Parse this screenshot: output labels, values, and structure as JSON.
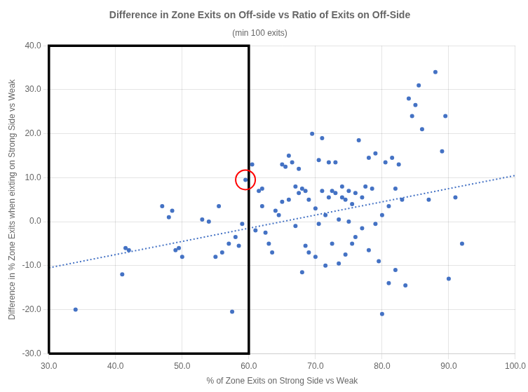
{
  "chart_data": {
    "type": "scatter",
    "title": "Difference in Zone Exits on Off-side vs Ratio of Exits on Off-Side",
    "subtitle": "(min 100 exits)",
    "xlabel": "% of Zone Exits on Strong Side vs Weak",
    "ylabel": "Difference in % Zone Exits when eixting on Strong Side vs Weak",
    "xlim": [
      30.0,
      100.0
    ],
    "ylim": [
      -30.0,
      40.0
    ],
    "xticks": [
      {
        "value": 30,
        "label": "30.0"
      },
      {
        "value": 40,
        "label": "40.0"
      },
      {
        "value": 50,
        "label": "50.0"
      },
      {
        "value": 60,
        "label": "60.0"
      },
      {
        "value": 70,
        "label": "70.0"
      },
      {
        "value": 80,
        "label": "80.0"
      },
      {
        "value": 90,
        "label": "90.0"
      },
      {
        "value": 100,
        "label": "100.0"
      }
    ],
    "yticks": [
      {
        "value": -30,
        "label": "-30.0"
      },
      {
        "value": -20,
        "label": "-20.0"
      },
      {
        "value": -10,
        "label": "-10.0"
      },
      {
        "value": 0,
        "label": "0.0"
      },
      {
        "value": 10,
        "label": "10.0"
      },
      {
        "value": 20,
        "label": "20.0"
      },
      {
        "value": 30,
        "label": "30.0"
      },
      {
        "value": 40,
        "label": "40.0"
      }
    ],
    "grid": true,
    "series": [
      {
        "type": "scatter",
        "color": "#4472C4",
        "marker": "circle",
        "x": [
          34.0,
          41.0,
          41.5,
          42.0,
          47.0,
          48.0,
          48.5,
          49.0,
          49.5,
          50.0,
          53.0,
          54.0,
          55.0,
          55.5,
          56.0,
          57.0,
          57.5,
          58.0,
          58.5,
          59.0,
          59.5,
          60.5,
          61.0,
          61.5,
          62.0,
          62.0,
          62.5,
          63.0,
          63.5,
          64.0,
          64.5,
          65.0,
          65.0,
          65.5,
          66.0,
          66.0,
          66.5,
          67.0,
          67.0,
          67.5,
          67.5,
          68.0,
          68.0,
          68.5,
          68.5,
          69.0,
          69.0,
          69.5,
          70.0,
          70.0,
          70.5,
          70.5,
          71.0,
          71.0,
          71.5,
          71.5,
          72.0,
          72.0,
          72.5,
          72.5,
          73.0,
          73.0,
          73.5,
          73.5,
          74.0,
          74.0,
          74.5,
          74.5,
          75.0,
          75.0,
          75.5,
          75.5,
          76.0,
          76.0,
          76.5,
          77.0,
          77.0,
          77.5,
          78.0,
          78.0,
          78.5,
          79.0,
          79.0,
          79.5,
          80.0,
          80.0,
          80.5,
          81.0,
          81.0,
          81.5,
          82.0,
          82.0,
          82.5,
          83.0,
          83.5,
          84.0,
          84.5,
          85.0,
          85.5,
          86.0,
          87.0,
          88.0,
          89.0,
          89.5,
          90.0,
          91.0,
          92.0
        ],
        "values": [
          -20.0,
          -12.0,
          -6.0,
          -6.5,
          3.5,
          1.0,
          2.5,
          -6.5,
          -6.0,
          -8.0,
          0.5,
          0.0,
          -8.0,
          3.5,
          -7.0,
          -5.0,
          -20.5,
          -3.5,
          -5.5,
          -0.5,
          9.5,
          13.0,
          -2.0,
          7.0,
          3.5,
          7.5,
          -2.5,
          -5.0,
          -7.0,
          2.5,
          1.5,
          13.0,
          4.5,
          12.5,
          15.0,
          5.0,
          13.5,
          8.0,
          -1.0,
          12.0,
          6.5,
          7.5,
          -11.5,
          7.0,
          -5.5,
          5.0,
          -7.0,
          20.0,
          3.0,
          -8.0,
          14.0,
          -0.5,
          19.0,
          7.0,
          1.5,
          -10.0,
          13.5,
          5.5,
          7.0,
          -5.0,
          6.5,
          13.5,
          -9.5,
          0.5,
          8.0,
          5.5,
          5.0,
          -7.5,
          7.0,
          0.0,
          4.0,
          -5.0,
          6.5,
          -3.5,
          18.5,
          5.5,
          -1.5,
          8.0,
          14.5,
          -6.5,
          7.5,
          15.5,
          -0.5,
          -9.0,
          -21.0,
          1.5,
          13.5,
          3.5,
          -14.0,
          14.5,
          -11.0,
          7.5,
          13.0,
          5.0,
          -14.5,
          28.0,
          24.0,
          26.5,
          31.0,
          21.0,
          5.0,
          34.0,
          16.0,
          24.0,
          -13.0,
          5.5,
          -5.0
        ]
      },
      {
        "type": "line",
        "color": "#4472C4",
        "line_style": "dotted",
        "x": [
          30.0,
          100.0
        ],
        "values": [
          -10.5,
          10.5
        ]
      },
      {
        "type": "line",
        "color": "#000000",
        "line_style": "solid",
        "x": [
          30.0,
          60.0,
          60.0,
          30.0,
          30.0
        ],
        "values": [
          -30.0,
          -30.0,
          40.0,
          40.0,
          -30.0
        ]
      },
      {
        "type": "scatter",
        "color": "#FF0000",
        "marker": "open_circle",
        "x": [
          59.5
        ],
        "values": [
          9.5
        ]
      }
    ]
  }
}
